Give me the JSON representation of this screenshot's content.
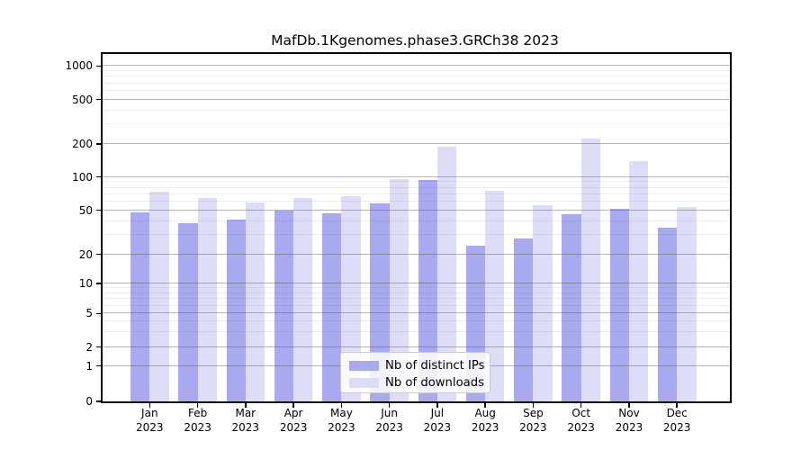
{
  "title": "MafDb.1Kgenomes.phase3.GRCh38 2023",
  "chart_data": {
    "type": "bar",
    "title": "MafDb.1Kgenomes.phase3.GRCh38 2023",
    "categories": [
      "Jan",
      "Feb",
      "Mar",
      "Apr",
      "May",
      "Jun",
      "Jul",
      "Aug",
      "Sep",
      "Oct",
      "Nov",
      "Dec"
    ],
    "x_year_label": "2023",
    "yticks": [
      0,
      1,
      2,
      5,
      10,
      20,
      50,
      100,
      200,
      500,
      1000
    ],
    "yscale": "symlog",
    "grid": "major and minor horizontal gridlines, drawn over bars",
    "legend_position": "lower center",
    "series": [
      {
        "name": "Nb of distinct IPs",
        "color": "#a9a9f0",
        "values": [
          48,
          38,
          41,
          50,
          47,
          58,
          94,
          24,
          28,
          46,
          51,
          35
        ]
      },
      {
        "name": "Nb of downloads",
        "color": "#ddddf8",
        "values": [
          74,
          64,
          59,
          64,
          67,
          96,
          190,
          75,
          56,
          225,
          139,
          53
        ]
      }
    ]
  }
}
